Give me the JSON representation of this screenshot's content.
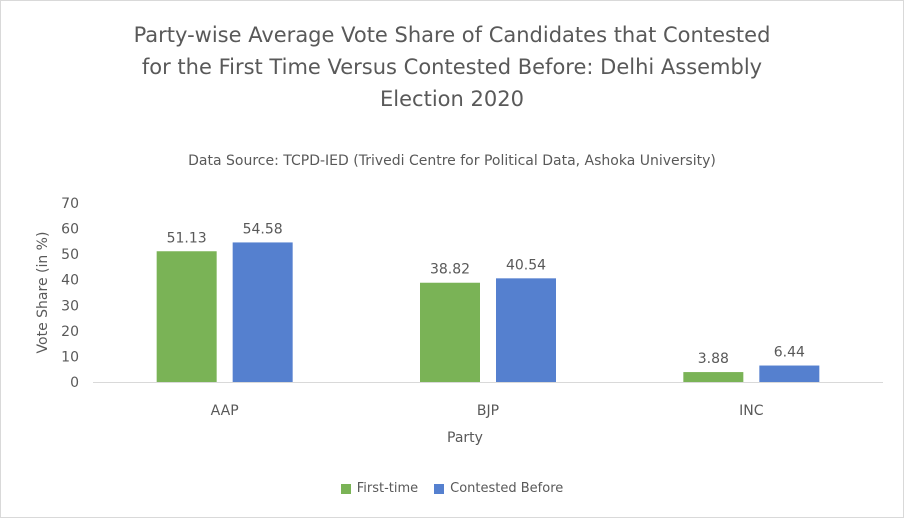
{
  "chart_data": {
    "type": "bar",
    "title_lines": [
      "Party-wise Average Vote Share of Candidates that Contested",
      "for the First Time Versus Contested Before: Delhi Assembly",
      "Election 2020"
    ],
    "subtitle": "Data Source: TCPD-IED (Trivedi Centre for Political Data, Ashoka University)",
    "xlabel": "Party",
    "ylabel": "Vote Share (in %)",
    "categories": [
      "AAP",
      "BJP",
      "INC"
    ],
    "ylim": [
      0,
      70
    ],
    "yticks": [
      0,
      10,
      20,
      30,
      40,
      50,
      60,
      70
    ],
    "grid": false,
    "legend_position": "bottom",
    "series": [
      {
        "name": "First-time",
        "color": "#7ab356",
        "values": [
          51.13,
          38.82,
          3.88
        ]
      },
      {
        "name": "Contested Before",
        "color": "#5580cf",
        "values": [
          54.58,
          40.54,
          6.44
        ]
      }
    ]
  }
}
